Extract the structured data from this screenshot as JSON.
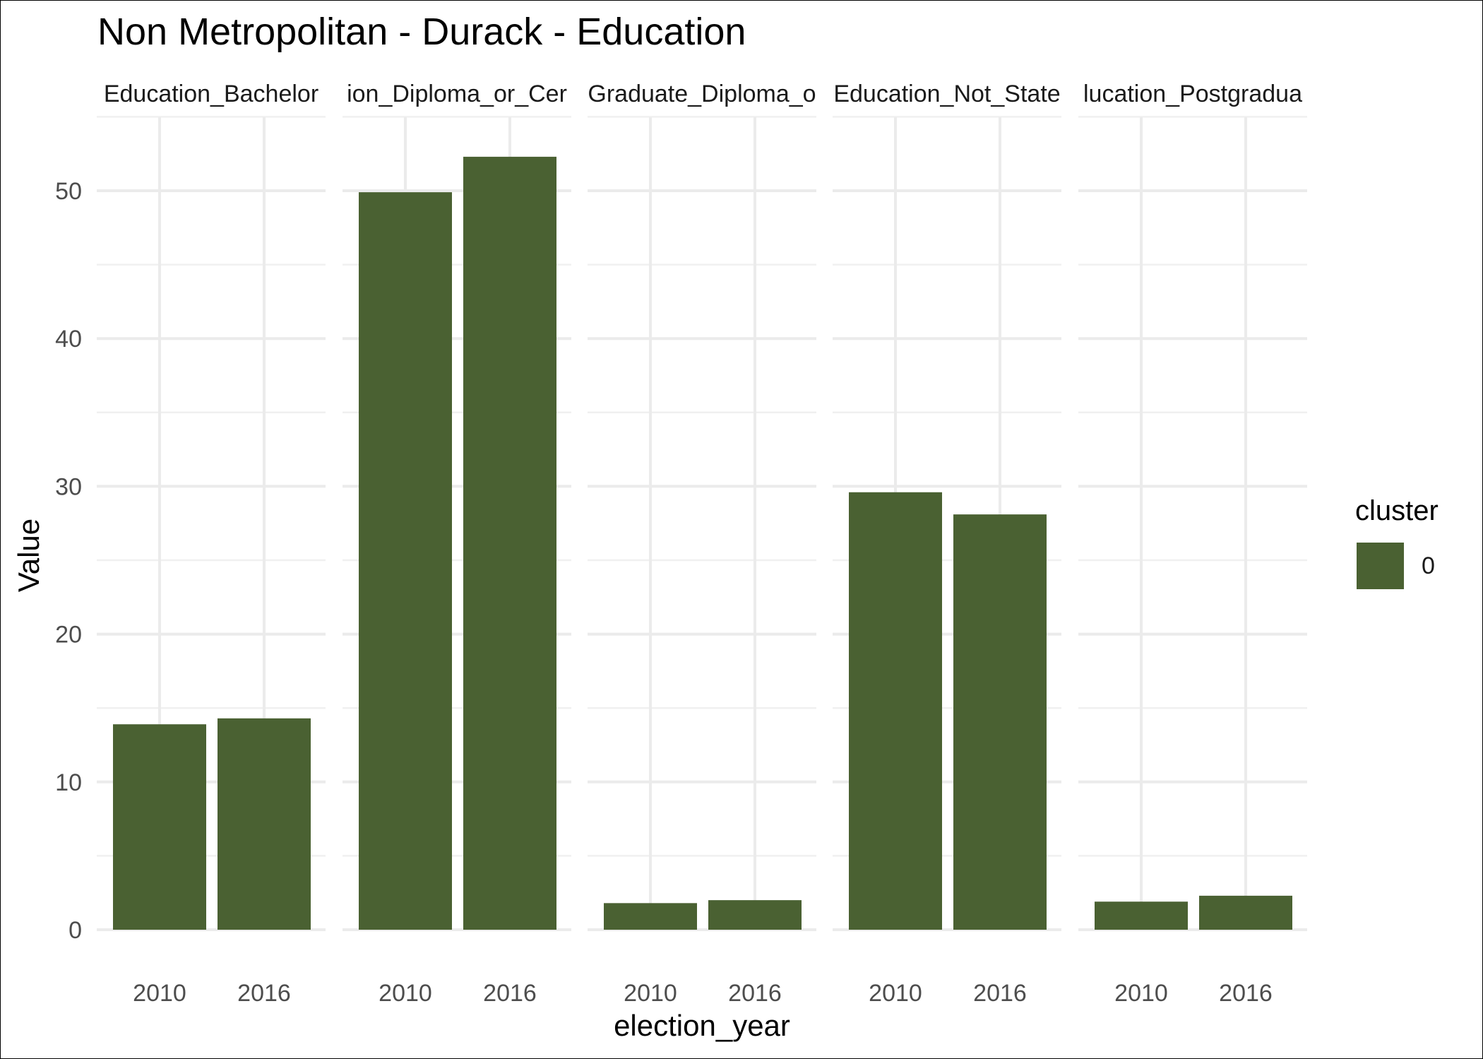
{
  "chart_data": {
    "type": "bar",
    "title": "Non Metropolitan - Durack - Education",
    "xlabel": "election_year",
    "ylabel": "Value",
    "ylim": [
      0,
      55
    ],
    "y_ticks": [
      0,
      10,
      20,
      30,
      40,
      50
    ],
    "categories": [
      "2010",
      "2016"
    ],
    "facets": [
      {
        "label": "Education_Bachelor",
        "values": [
          13.9,
          14.3
        ]
      },
      {
        "label": "ion_Diploma_or_Cer",
        "values": [
          49.9,
          52.3
        ]
      },
      {
        "label": "Graduate_Diploma_o",
        "values": [
          1.8,
          2.0
        ]
      },
      {
        "label": "Education_Not_State",
        "values": [
          29.6,
          28.1
        ]
      },
      {
        "label": "lucation_Postgradua",
        "values": [
          1.9,
          2.3
        ]
      }
    ],
    "legend": {
      "title": "cluster",
      "entries": [
        {
          "label": "0",
          "color": "#4a6132"
        }
      ],
      "position": "right"
    },
    "bar_color": "#4a6132",
    "grid": true
  }
}
